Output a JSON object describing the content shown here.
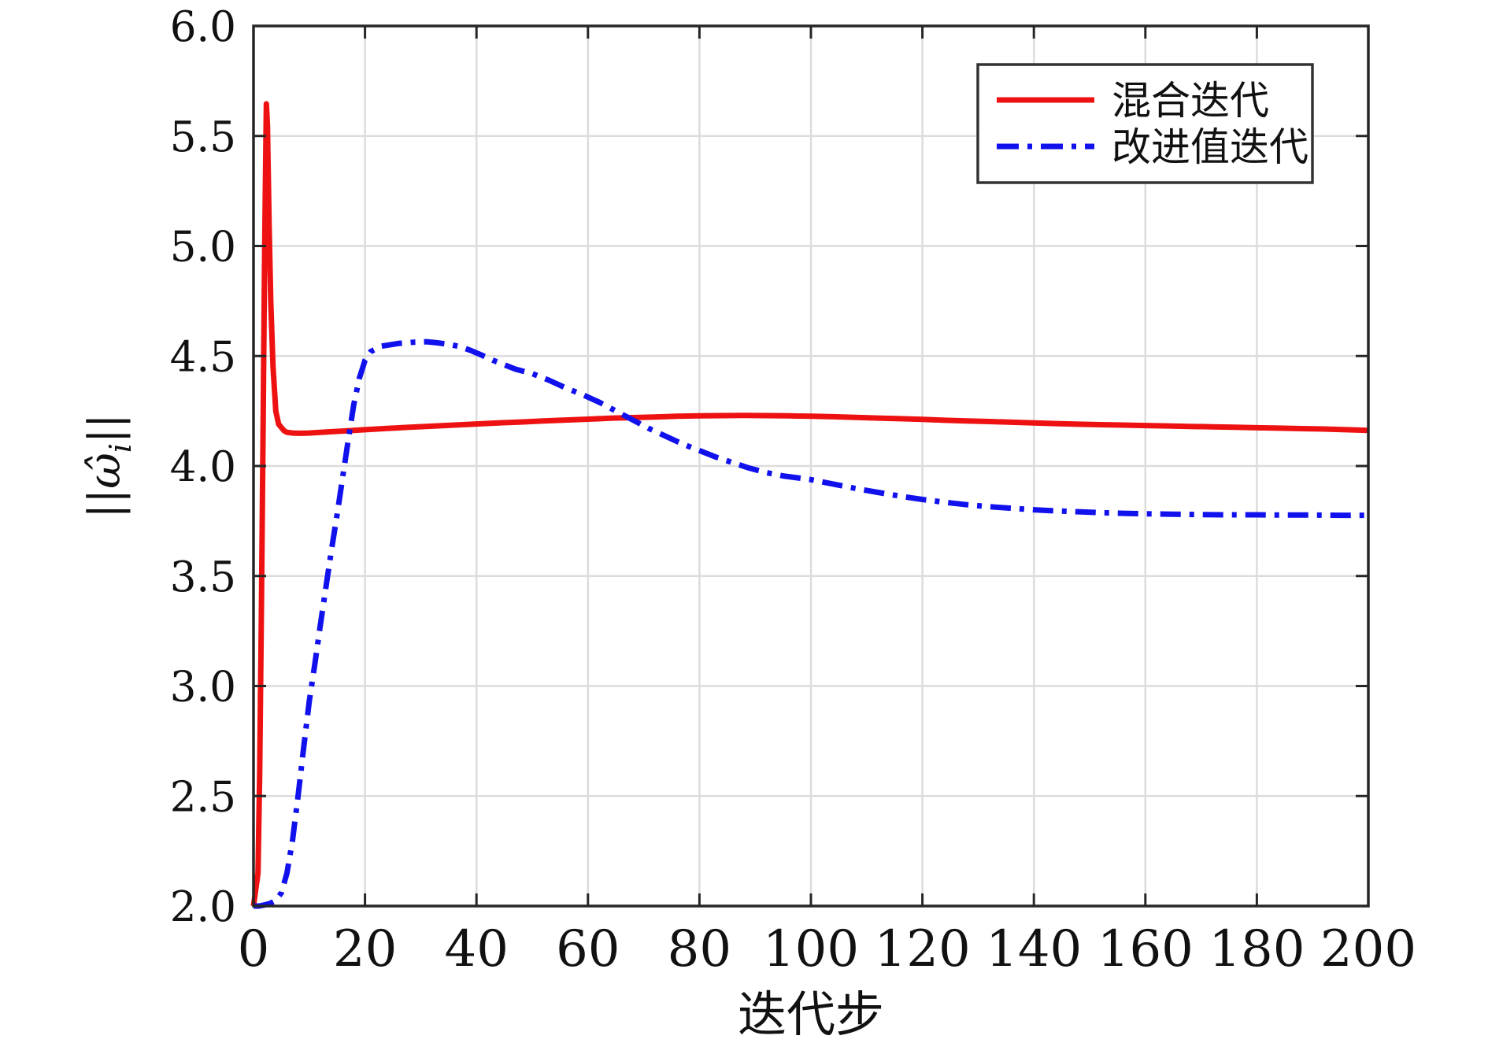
{
  "figure": {
    "background": "#ffffff",
    "axis_color": "#262626",
    "grid_color": "#dcdcdc",
    "text_color": "#111111"
  },
  "chart_data": {
    "type": "line",
    "title": "",
    "xlabel": "迭代步",
    "ylabel": "‖ω̂ᵢ‖",
    "ylabel_parts": {
      "open": "||",
      "symbol": "ω̂",
      "sub": "i",
      "close": "||"
    },
    "xlim": [
      0,
      200
    ],
    "ylim": [
      2.0,
      6.0
    ],
    "xticks": [
      0,
      20,
      40,
      60,
      80,
      100,
      120,
      140,
      160,
      180,
      200
    ],
    "x_tick_labels": [
      "0",
      "20",
      "40",
      "60",
      "80",
      "100",
      "120",
      "140",
      "160",
      "180",
      "200"
    ],
    "yticks": [
      2.0,
      2.5,
      3.0,
      3.5,
      4.0,
      4.5,
      5.0,
      5.5,
      6.0
    ],
    "y_tick_labels": [
      "2.0",
      "2.5",
      "3.0",
      "3.5",
      "4.0",
      "4.5",
      "5.0",
      "5.5",
      "6.0"
    ],
    "grid": true,
    "legend_position": "top-right",
    "series": [
      {
        "name": "混合迭代",
        "color": "#ee1111",
        "style": "solid",
        "points": [
          [
            0,
            2.0
          ],
          [
            0.8,
            2.15
          ],
          [
            1.1,
            2.6
          ],
          [
            1.4,
            3.3
          ],
          [
            1.7,
            4.1
          ],
          [
            2.0,
            5.0
          ],
          [
            2.3,
            5.646
          ],
          [
            2.5,
            5.55
          ],
          [
            2.8,
            5.1
          ],
          [
            3.1,
            4.75
          ],
          [
            3.5,
            4.45
          ],
          [
            4,
            4.25
          ],
          [
            4.5,
            4.19
          ],
          [
            5,
            4.175
          ],
          [
            5.5,
            4.16
          ],
          [
            6,
            4.153
          ],
          [
            7,
            4.15
          ],
          [
            8,
            4.149
          ],
          [
            10,
            4.15
          ],
          [
            12,
            4.153
          ],
          [
            14,
            4.156
          ],
          [
            16,
            4.159
          ],
          [
            18,
            4.162
          ],
          [
            20,
            4.165
          ],
          [
            24,
            4.171
          ],
          [
            28,
            4.176
          ],
          [
            32,
            4.181
          ],
          [
            36,
            4.186
          ],
          [
            40,
            4.191
          ],
          [
            44,
            4.196
          ],
          [
            48,
            4.2
          ],
          [
            52,
            4.205
          ],
          [
            56,
            4.209
          ],
          [
            60,
            4.213
          ],
          [
            64,
            4.217
          ],
          [
            68,
            4.22
          ],
          [
            72,
            4.223
          ],
          [
            76,
            4.226
          ],
          [
            80,
            4.228
          ],
          [
            84,
            4.229
          ],
          [
            88,
            4.23
          ],
          [
            92,
            4.229
          ],
          [
            96,
            4.228
          ],
          [
            100,
            4.226
          ],
          [
            104,
            4.224
          ],
          [
            108,
            4.221
          ],
          [
            112,
            4.218
          ],
          [
            116,
            4.215
          ],
          [
            120,
            4.212
          ],
          [
            124,
            4.208
          ],
          [
            128,
            4.205
          ],
          [
            132,
            4.202
          ],
          [
            136,
            4.199
          ],
          [
            140,
            4.196
          ],
          [
            144,
            4.193
          ],
          [
            148,
            4.19
          ],
          [
            152,
            4.188
          ],
          [
            156,
            4.186
          ],
          [
            160,
            4.184
          ],
          [
            164,
            4.182
          ],
          [
            168,
            4.18
          ],
          [
            172,
            4.178
          ],
          [
            176,
            4.176
          ],
          [
            180,
            4.174
          ],
          [
            184,
            4.172
          ],
          [
            188,
            4.17
          ],
          [
            192,
            4.168
          ],
          [
            196,
            4.165
          ],
          [
            200,
            4.162
          ]
        ]
      },
      {
        "name": "改进值迭代",
        "color": "#1111ee",
        "style": "dash-dot",
        "points": [
          [
            0,
            2.0
          ],
          [
            1,
            2.0
          ],
          [
            2,
            2.005
          ],
          [
            3,
            2.012
          ],
          [
            4,
            2.025
          ],
          [
            5,
            2.06
          ],
          [
            6,
            2.15
          ],
          [
            7,
            2.3
          ],
          [
            8,
            2.5
          ],
          [
            9,
            2.72
          ],
          [
            10,
            2.93
          ],
          [
            11,
            3.1
          ],
          [
            12,
            3.28
          ],
          [
            13,
            3.45
          ],
          [
            14,
            3.62
          ],
          [
            15,
            3.78
          ],
          [
            16,
            3.95
          ],
          [
            17,
            4.12
          ],
          [
            18,
            4.28
          ],
          [
            19,
            4.4
          ],
          [
            20,
            4.48
          ],
          [
            21,
            4.52
          ],
          [
            23,
            4.545
          ],
          [
            26,
            4.557
          ],
          [
            29,
            4.563
          ],
          [
            31,
            4.565
          ],
          [
            33,
            4.56
          ],
          [
            35,
            4.553
          ],
          [
            37,
            4.543
          ],
          [
            39,
            4.525
          ],
          [
            41,
            4.503
          ],
          [
            43,
            4.48
          ],
          [
            45,
            4.46
          ],
          [
            47,
            4.44
          ],
          [
            50,
            4.42
          ],
          [
            53,
            4.39
          ],
          [
            56,
            4.355
          ],
          [
            59,
            4.325
          ],
          [
            62,
            4.29
          ],
          [
            65,
            4.25
          ],
          [
            68,
            4.21
          ],
          [
            71,
            4.17
          ],
          [
            74,
            4.135
          ],
          [
            77,
            4.1
          ],
          [
            80,
            4.07
          ],
          [
            83,
            4.04
          ],
          [
            86,
            4.015
          ],
          [
            89,
            3.99
          ],
          [
            92,
            3.97
          ],
          [
            95,
            3.955
          ],
          [
            98,
            3.945
          ],
          [
            100,
            3.938
          ],
          [
            104,
            3.918
          ],
          [
            108,
            3.898
          ],
          [
            112,
            3.88
          ],
          [
            116,
            3.863
          ],
          [
            120,
            3.848
          ],
          [
            124,
            3.835
          ],
          [
            128,
            3.824
          ],
          [
            132,
            3.815
          ],
          [
            136,
            3.808
          ],
          [
            140,
            3.801
          ],
          [
            144,
            3.796
          ],
          [
            148,
            3.792
          ],
          [
            152,
            3.788
          ],
          [
            156,
            3.785
          ],
          [
            160,
            3.783
          ],
          [
            165,
            3.781
          ],
          [
            170,
            3.779
          ],
          [
            175,
            3.778
          ],
          [
            180,
            3.778
          ],
          [
            185,
            3.777
          ],
          [
            190,
            3.777
          ],
          [
            195,
            3.776
          ],
          [
            200,
            3.776
          ]
        ]
      }
    ]
  },
  "legend": {
    "entries": [
      {
        "label": "混合迭代",
        "swatch": "red-solid-line"
      },
      {
        "label": "改进值迭代",
        "swatch": "blue-dash-dot-line"
      }
    ]
  }
}
